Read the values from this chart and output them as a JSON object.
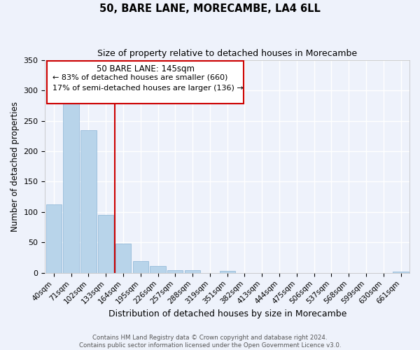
{
  "title": "50, BARE LANE, MORECAMBE, LA4 6LL",
  "subtitle": "Size of property relative to detached houses in Morecambe",
  "xlabel": "Distribution of detached houses by size in Morecambe",
  "ylabel": "Number of detached properties",
  "categories": [
    "40sqm",
    "71sqm",
    "102sqm",
    "133sqm",
    "164sqm",
    "195sqm",
    "226sqm",
    "257sqm",
    "288sqm",
    "319sqm",
    "351sqm",
    "382sqm",
    "413sqm",
    "444sqm",
    "475sqm",
    "506sqm",
    "537sqm",
    "568sqm",
    "599sqm",
    "630sqm",
    "661sqm"
  ],
  "values": [
    112,
    280,
    235,
    95,
    48,
    19,
    11,
    5,
    4,
    0,
    3,
    0,
    0,
    0,
    0,
    0,
    0,
    0,
    0,
    0,
    2
  ],
  "bar_color": "#b8d4ea",
  "bar_edge_color": "#8ab4d4",
  "vline_color": "#cc0000",
  "vline_position": 3.5,
  "annotation_title": "50 BARE LANE: 145sqm",
  "annotation_line1": "← 83% of detached houses are smaller (660)",
  "annotation_line2": "17% of semi-detached houses are larger (136) →",
  "annotation_box_color": "#cc0000",
  "ylim": [
    0,
    350
  ],
  "yticks": [
    0,
    50,
    100,
    150,
    200,
    250,
    300,
    350
  ],
  "background_color": "#eef2fb",
  "grid_color": "#ffffff",
  "footer_line1": "Contains HM Land Registry data © Crown copyright and database right 2024.",
  "footer_line2": "Contains public sector information licensed under the Open Government Licence v3.0."
}
